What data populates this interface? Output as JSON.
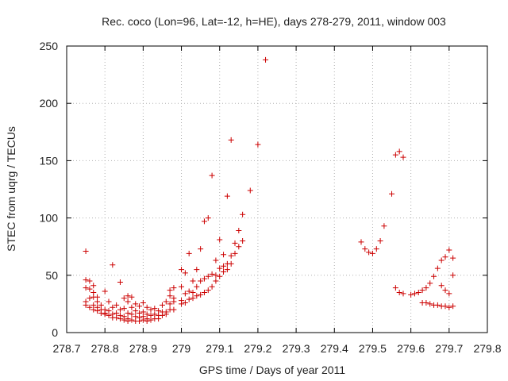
{
  "chart_data": {
    "type": "scatter",
    "title": "Rec. coco (Lon=96, Lat=-12, h=HE), days 278-279, 2011, window 003",
    "xlabel": "GPS time / Days of year 2011",
    "ylabel": "STEC from uqrg / TECUs",
    "xlim": [
      278.7,
      279.8
    ],
    "ylim": [
      0,
      250
    ],
    "x_ticks": [
      "278.7",
      "278.8",
      "278.9",
      "279",
      "279.1",
      "279.2",
      "279.3",
      "279.4",
      "279.5",
      "279.6",
      "279.7",
      "279.8"
    ],
    "y_ticks": [
      "0",
      "50",
      "100",
      "150",
      "200",
      "250"
    ],
    "grid": true,
    "marker": "+",
    "marker_color": "#cc0000",
    "series": [
      {
        "points": [
          [
            278.75,
            71
          ],
          [
            278.75,
            46
          ],
          [
            278.75,
            39
          ],
          [
            278.75,
            27
          ],
          [
            278.75,
            24
          ],
          [
            278.76,
            45
          ],
          [
            278.76,
            38
          ],
          [
            278.76,
            30
          ],
          [
            278.76,
            22
          ],
          [
            278.77,
            41
          ],
          [
            278.77,
            35
          ],
          [
            278.77,
            31
          ],
          [
            278.77,
            24
          ],
          [
            278.77,
            20
          ],
          [
            278.78,
            31
          ],
          [
            278.78,
            27
          ],
          [
            278.78,
            22
          ],
          [
            278.78,
            19
          ],
          [
            278.79,
            24
          ],
          [
            278.79,
            20
          ],
          [
            278.79,
            17
          ],
          [
            278.8,
            36
          ],
          [
            278.8,
            20
          ],
          [
            278.8,
            17
          ],
          [
            278.8,
            16
          ],
          [
            278.81,
            27
          ],
          [
            278.81,
            19
          ],
          [
            278.81,
            15
          ],
          [
            278.82,
            59
          ],
          [
            278.82,
            22
          ],
          [
            278.82,
            16
          ],
          [
            278.82,
            13
          ],
          [
            278.83,
            24
          ],
          [
            278.83,
            17
          ],
          [
            278.83,
            13
          ],
          [
            278.84,
            44
          ],
          [
            278.84,
            20
          ],
          [
            278.84,
            15
          ],
          [
            278.84,
            12
          ],
          [
            278.85,
            30
          ],
          [
            278.85,
            21
          ],
          [
            278.85,
            14
          ],
          [
            278.85,
            11
          ],
          [
            278.86,
            32
          ],
          [
            278.86,
            27
          ],
          [
            278.86,
            17
          ],
          [
            278.86,
            12
          ],
          [
            278.86,
            10
          ],
          [
            278.87,
            31
          ],
          [
            278.87,
            22
          ],
          [
            278.87,
            16
          ],
          [
            278.87,
            11
          ],
          [
            278.88,
            25
          ],
          [
            278.88,
            19
          ],
          [
            278.88,
            14
          ],
          [
            278.88,
            10
          ],
          [
            278.89,
            23
          ],
          [
            278.89,
            17
          ],
          [
            278.89,
            13
          ],
          [
            278.89,
            10
          ],
          [
            278.9,
            26
          ],
          [
            278.9,
            18
          ],
          [
            278.9,
            14
          ],
          [
            278.9,
            11
          ],
          [
            278.91,
            22
          ],
          [
            278.91,
            16
          ],
          [
            278.91,
            12
          ],
          [
            278.91,
            10
          ],
          [
            278.92,
            20
          ],
          [
            278.92,
            15
          ],
          [
            278.92,
            11
          ],
          [
            278.93,
            21
          ],
          [
            278.93,
            16
          ],
          [
            278.93,
            12
          ],
          [
            278.94,
            19
          ],
          [
            278.94,
            15
          ],
          [
            278.94,
            12
          ],
          [
            278.95,
            24
          ],
          [
            278.95,
            18
          ],
          [
            278.95,
            15
          ],
          [
            278.96,
            27
          ],
          [
            278.96,
            18
          ],
          [
            278.96,
            16
          ],
          [
            278.97,
            37
          ],
          [
            278.97,
            32
          ],
          [
            278.97,
            25
          ],
          [
            278.97,
            20
          ],
          [
            278.98,
            39
          ],
          [
            278.98,
            30
          ],
          [
            278.98,
            27
          ],
          [
            278.98,
            20
          ],
          [
            279.0,
            55
          ],
          [
            279.0,
            40
          ],
          [
            279.0,
            28
          ],
          [
            279.0,
            25
          ],
          [
            279.01,
            52
          ],
          [
            279.01,
            34
          ],
          [
            279.01,
            26
          ],
          [
            279.02,
            69
          ],
          [
            279.02,
            36
          ],
          [
            279.02,
            29
          ],
          [
            279.03,
            45
          ],
          [
            279.03,
            35
          ],
          [
            279.03,
            30
          ],
          [
            279.04,
            55
          ],
          [
            279.04,
            40
          ],
          [
            279.04,
            32
          ],
          [
            279.05,
            73
          ],
          [
            279.05,
            45
          ],
          [
            279.05,
            33
          ],
          [
            279.06,
            97
          ],
          [
            279.06,
            47
          ],
          [
            279.06,
            35
          ],
          [
            279.07,
            100
          ],
          [
            279.07,
            49
          ],
          [
            279.07,
            37
          ],
          [
            279.08,
            137
          ],
          [
            279.08,
            51
          ],
          [
            279.08,
            40
          ],
          [
            279.09,
            63
          ],
          [
            279.09,
            50
          ],
          [
            279.09,
            45
          ],
          [
            279.1,
            81
          ],
          [
            279.1,
            56
          ],
          [
            279.1,
            49
          ],
          [
            279.11,
            68
          ],
          [
            279.11,
            58
          ],
          [
            279.11,
            53
          ],
          [
            279.12,
            119
          ],
          [
            279.12,
            60
          ],
          [
            279.12,
            55
          ],
          [
            279.13,
            168
          ],
          [
            279.13,
            67
          ],
          [
            279.13,
            60
          ],
          [
            279.14,
            78
          ],
          [
            279.14,
            69
          ],
          [
            279.15,
            89
          ],
          [
            279.15,
            75
          ],
          [
            279.16,
            103
          ],
          [
            279.16,
            80
          ],
          [
            279.18,
            124
          ],
          [
            279.2,
            164
          ],
          [
            279.22,
            238
          ],
          [
            279.47,
            79
          ],
          [
            279.48,
            73
          ],
          [
            279.49,
            70
          ],
          [
            279.5,
            69
          ],
          [
            279.51,
            73
          ],
          [
            279.52,
            80
          ],
          [
            279.53,
            93
          ],
          [
            279.55,
            121
          ],
          [
            279.56,
            155
          ],
          [
            279.56,
            39
          ],
          [
            279.57,
            158
          ],
          [
            279.57,
            35
          ],
          [
            279.58,
            153
          ],
          [
            279.58,
            34
          ],
          [
            279.6,
            33
          ],
          [
            279.61,
            34
          ],
          [
            279.62,
            35
          ],
          [
            279.63,
            37
          ],
          [
            279.63,
            26
          ],
          [
            279.64,
            39
          ],
          [
            279.64,
            26
          ],
          [
            279.65,
            43
          ],
          [
            279.65,
            25
          ],
          [
            279.66,
            49
          ],
          [
            279.66,
            24
          ],
          [
            279.67,
            56
          ],
          [
            279.67,
            24
          ],
          [
            279.68,
            63
          ],
          [
            279.68,
            41
          ],
          [
            279.68,
            23
          ],
          [
            279.69,
            66
          ],
          [
            279.69,
            37
          ],
          [
            279.69,
            23
          ],
          [
            279.7,
            72
          ],
          [
            279.7,
            34
          ],
          [
            279.7,
            22
          ],
          [
            279.71,
            65
          ],
          [
            279.71,
            50
          ],
          [
            279.71,
            23
          ]
        ]
      }
    ]
  }
}
